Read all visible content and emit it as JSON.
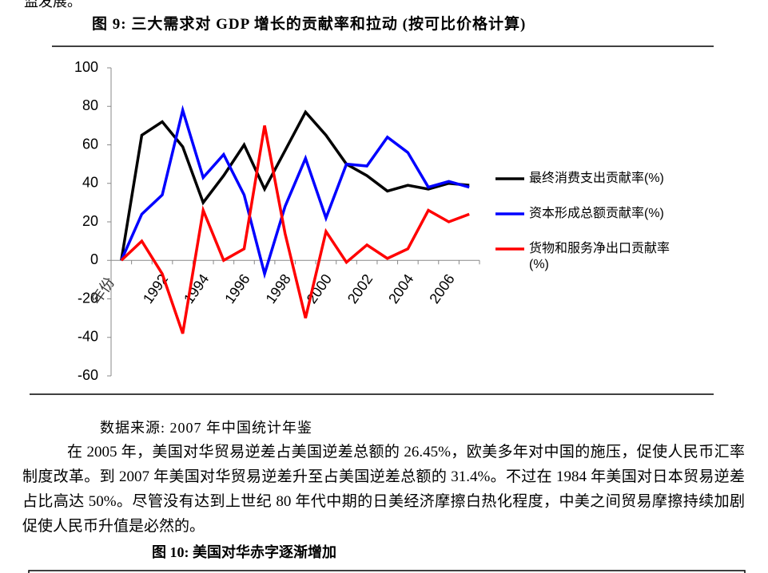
{
  "top_fragment": "监发展。",
  "figure_caption": "图 9: 三大需求对 GDP 增长的贡献率和拉动 (按可比价格计算)",
  "chart_data": {
    "type": "line",
    "x_label": "年份",
    "categories": [
      null,
      null,
      "1992",
      null,
      "1994",
      null,
      "1996",
      null,
      "1998",
      null,
      "2000",
      null,
      "2002",
      null,
      "2004",
      null,
      "2006",
      null
    ],
    "series": [
      {
        "name": "最终消费支出贡献率(%)",
        "color": "#000000",
        "values": [
          0,
          65,
          72,
          59,
          30,
          44,
          60,
          37,
          57,
          77,
          65,
          50,
          44,
          36,
          39,
          37,
          40,
          39
        ]
      },
      {
        "name": "资本形成总额贡献率(%)",
        "color": "#0000ff",
        "values": [
          0,
          24,
          34,
          78,
          43,
          55,
          34,
          -7,
          28,
          53,
          22,
          50,
          49,
          64,
          56,
          38,
          41,
          38
        ]
      },
      {
        "name": "货物和服务净出口贡献率(%)",
        "color": "#ff0000",
        "values": [
          0,
          10,
          -7,
          -38,
          26,
          0,
          6,
          70,
          14,
          -30,
          15,
          -1,
          8,
          1,
          6,
          26,
          20,
          24
        ]
      }
    ],
    "ylim": [
      -60,
      100
    ],
    "yticks": [
      -60,
      -40,
      -20,
      0,
      20,
      40,
      60,
      80,
      100
    ],
    "legend": "right"
  },
  "source": "数据来源: 2007 年中国统计年鉴",
  "paragraph": "在 2005 年，美国对华贸易逆差占美国逆差总额的 26.45%，欧美多年对中国的施压，促使人民币汇率制度改革。到 2007 年美国对华贸易逆差升至占美国逆差总额的 31.4%。不过在 1984 年美国对日本贸易逆差占比高达 50%。尽管没有达到上世纪 80 年代中期的日美经济摩擦白热化程度，中美之间贸易摩擦持续加剧促使人民币升值是必然的。",
  "next_caption": "图 10: 美国对华赤字逐渐增加"
}
